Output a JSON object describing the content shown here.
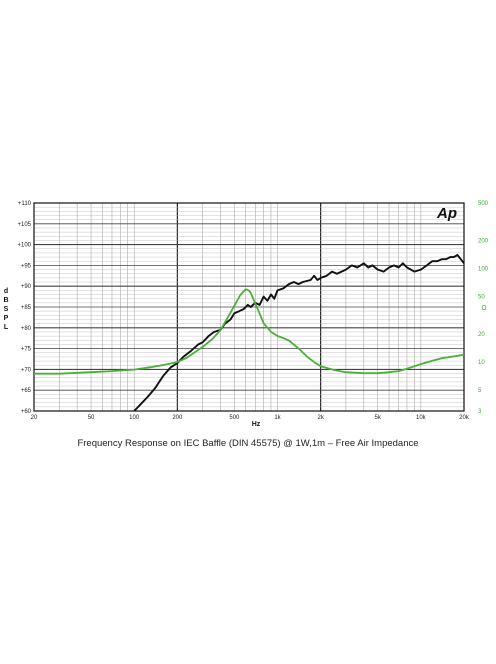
{
  "caption": "Frequency Response on IEC Baffle (DIN 45575)  @ 1W,1m – Free  Air Impedance",
  "chart_data": {
    "type": "line",
    "logo": "Ap",
    "xlabel": "Hz",
    "ylabel_left": "dB SPL",
    "ylabel_right": "Ω",
    "x_scale": "log",
    "xlim": [
      20,
      20000
    ],
    "ylim_left": [
      60,
      110
    ],
    "ylim_right_log": [
      3,
      500
    ],
    "grid": true,
    "x_ticks": [
      {
        "value": 20,
        "label": "20"
      },
      {
        "value": 50,
        "label": "50"
      },
      {
        "value": 100,
        "label": "100"
      },
      {
        "value": 200,
        "label": "200"
      },
      {
        "value": 500,
        "label": "500"
      },
      {
        "value": 1000,
        "label": "1k"
      },
      {
        "value": 2000,
        "label": "2k"
      },
      {
        "value": 5000,
        "label": "5k"
      },
      {
        "value": 10000,
        "label": "10k"
      },
      {
        "value": 20000,
        "label": "20k"
      }
    ],
    "y_ticks_left": [
      {
        "value": 60,
        "label": "+60"
      },
      {
        "value": 65,
        "label": "+65"
      },
      {
        "value": 70,
        "label": "+70"
      },
      {
        "value": 75,
        "label": "+75"
      },
      {
        "value": 80,
        "label": "+80"
      },
      {
        "value": 85,
        "label": "+85"
      },
      {
        "value": 90,
        "label": "+90"
      },
      {
        "value": 95,
        "label": "+95"
      },
      {
        "value": 100,
        "label": "+100"
      },
      {
        "value": 105,
        "label": "+105"
      },
      {
        "value": 110,
        "label": "+110"
      }
    ],
    "y_ticks_right": [
      {
        "value": 500,
        "label": "500"
      },
      {
        "value": 200,
        "label": "200"
      },
      {
        "value": 100,
        "label": "100"
      },
      {
        "value": 50,
        "label": "50"
      },
      {
        "value": 20,
        "label": "20"
      },
      {
        "value": 10,
        "label": "10"
      },
      {
        "value": 5,
        "label": "5"
      },
      {
        "value": 3,
        "label": "3"
      }
    ],
    "series": [
      {
        "axis": "left",
        "color": "#111111",
        "x": [
          100,
          110,
          125,
          140,
          160,
          180,
          200,
          220,
          250,
          280,
          300,
          330,
          360,
          400,
          430,
          470,
          500,
          540,
          580,
          620,
          650,
          700,
          750,
          800,
          850,
          900,
          950,
          1000,
          1100,
          1200,
          1300,
          1400,
          1500,
          1700,
          1800,
          1900,
          2000,
          2200,
          2400,
          2600,
          3000,
          3300,
          3600,
          4000,
          4300,
          4600,
          5000,
          5500,
          6000,
          6500,
          7000,
          7500,
          8000,
          9000,
          10000,
          11000,
          12000,
          13000,
          14000,
          15000,
          16000,
          17000,
          18000,
          19000,
          20000
        ],
        "y": [
          60,
          61.5,
          63.5,
          65.5,
          68.5,
          70.5,
          71.5,
          73,
          74.5,
          76,
          76.5,
          78,
          79,
          79.5,
          81,
          82,
          83.5,
          84,
          84.5,
          85.5,
          85,
          86,
          85.5,
          87.5,
          86.5,
          88,
          87,
          89,
          89.5,
          90.5,
          91,
          90.5,
          91,
          91.5,
          92.5,
          91.5,
          92,
          92.5,
          93.5,
          93,
          94,
          95,
          94.5,
          95.5,
          94.5,
          95,
          94,
          93.5,
          94.5,
          95,
          94.5,
          95.5,
          94.5,
          93.5,
          94,
          95,
          96,
          96,
          96.5,
          96.5,
          97,
          97,
          97.5,
          96.5,
          95.5
        ]
      },
      {
        "axis": "right",
        "color": "#4caf3a",
        "x": [
          20,
          30,
          50,
          70,
          100,
          130,
          160,
          200,
          230,
          260,
          300,
          350,
          400,
          450,
          500,
          550,
          600,
          630,
          650,
          700,
          750,
          800,
          900,
          1000,
          1100,
          1200,
          1400,
          1600,
          1800,
          2000,
          2500,
          3000,
          4000,
          5000,
          6000,
          7000,
          8000,
          9000,
          10000,
          12000,
          14000,
          17000,
          20000
        ],
        "y": [
          7.5,
          7.5,
          7.8,
          8,
          8.3,
          8.8,
          9.3,
          10,
          11,
          12.5,
          14.5,
          17.5,
          22,
          30,
          40,
          52,
          60,
          58,
          55,
          42,
          33,
          26,
          21,
          19,
          18,
          17,
          14,
          11.5,
          10,
          9,
          8.2,
          7.8,
          7.6,
          7.6,
          7.8,
          8,
          8.5,
          9,
          9.5,
          10.3,
          11,
          11.5,
          12
        ]
      }
    ]
  }
}
